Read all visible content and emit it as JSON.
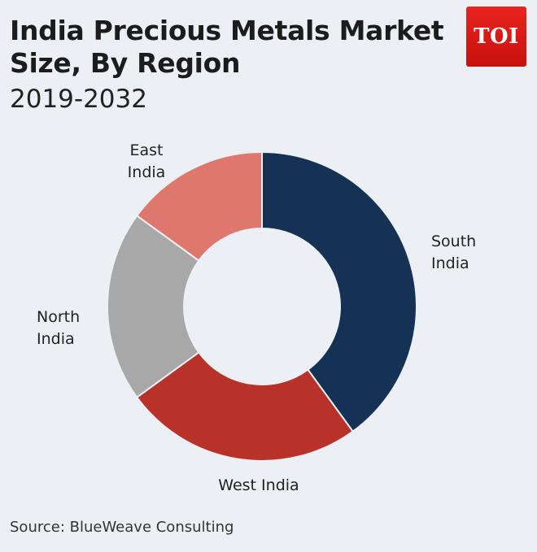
{
  "header": {
    "title": "India Precious Metals Market Size, By Region",
    "subtitle": "2019-2032",
    "logo_text": "TOI"
  },
  "source": "Source: BlueWeave Consulting",
  "chart_data": {
    "type": "pie",
    "donut": true,
    "categories": [
      "South India",
      "West India",
      "North India",
      "East India"
    ],
    "values": [
      40,
      25,
      20,
      15
    ],
    "colors": [
      "#153153",
      "#b73329",
      "#a8a8a8",
      "#de776c"
    ],
    "legend": "none",
    "labels": [
      {
        "lines": [
          "South",
          "India"
        ]
      },
      {
        "lines": [
          "West India"
        ]
      },
      {
        "lines": [
          "North",
          "India"
        ]
      },
      {
        "lines": [
          "East",
          "India"
        ]
      }
    ]
  }
}
